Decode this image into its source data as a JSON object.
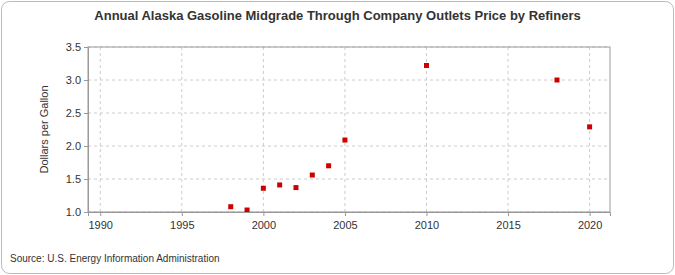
{
  "chart_data": {
    "type": "scatter",
    "title": "Annual Alaska Gasoline Midgrade Through Company Outlets Price by Refiners",
    "y_label": "Dollars per Gallon",
    "source": "Source: U.S. Energy Information Administration",
    "x": [
      1998,
      1999,
      2000,
      2001,
      2002,
      2003,
      2004,
      2005,
      2010,
      2018,
      2020
    ],
    "values": [
      1.08,
      1.03,
      1.36,
      1.41,
      1.37,
      1.56,
      1.7,
      2.09,
      3.22,
      3.0,
      2.29
    ],
    "color": "#cc0000",
    "marker": "square",
    "xlim": [
      1989.25,
      2021.25
    ],
    "xticks": [
      1990,
      1995,
      2000,
      2005,
      2010,
      2015,
      2020
    ],
    "ylim": [
      1.0,
      3.5
    ],
    "yticks": [
      {
        "value": 1.0,
        "label": "1.0"
      },
      {
        "value": 1.5,
        "label": "1.5"
      },
      {
        "value": 2.0,
        "label": "2.0"
      },
      {
        "value": 2.5,
        "label": "2.5"
      },
      {
        "value": 3.0,
        "label": "3.0"
      },
      {
        "value": 3.5,
        "label": "3.5"
      }
    ],
    "grid": true
  }
}
